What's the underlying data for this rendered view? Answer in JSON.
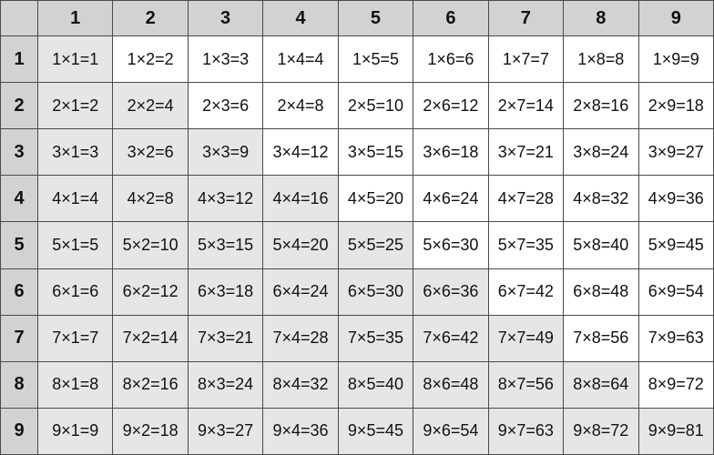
{
  "table": {
    "corner": "",
    "column_headers": [
      "1",
      "2",
      "3",
      "4",
      "5",
      "6",
      "7",
      "8",
      "9"
    ],
    "row_headers": [
      "1",
      "2",
      "3",
      "4",
      "5",
      "6",
      "7",
      "8",
      "9"
    ],
    "rows": [
      [
        "1×1=1",
        "1×2=2",
        "1×3=3",
        "1×4=4",
        "1×5=5",
        "1×6=6",
        "1×7=7",
        "1×8=8",
        "1×9=9"
      ],
      [
        "2×1=2",
        "2×2=4",
        "2×3=6",
        "2×4=8",
        "2×5=10",
        "2×6=12",
        "2×7=14",
        "2×8=16",
        "2×9=18"
      ],
      [
        "3×1=3",
        "3×2=6",
        "3×3=9",
        "3×4=12",
        "3×5=15",
        "3×6=18",
        "3×7=21",
        "3×8=24",
        "3×9=27"
      ],
      [
        "4×1=4",
        "4×2=8",
        "4×3=12",
        "4×4=16",
        "4×5=20",
        "4×6=24",
        "4×7=28",
        "4×8=32",
        "4×9=36"
      ],
      [
        "5×1=5",
        "5×2=10",
        "5×3=15",
        "5×4=20",
        "5×5=25",
        "5×6=30",
        "5×7=35",
        "5×8=40",
        "5×9=45"
      ],
      [
        "6×1=6",
        "6×2=12",
        "6×3=18",
        "6×4=24",
        "6×5=30",
        "6×6=36",
        "6×7=42",
        "6×8=48",
        "6×9=54"
      ],
      [
        "7×1=7",
        "7×2=14",
        "7×3=21",
        "7×4=28",
        "7×5=35",
        "7×6=42",
        "7×7=49",
        "7×8=56",
        "7×9=63"
      ],
      [
        "8×1=8",
        "8×2=16",
        "8×3=24",
        "8×4=32",
        "8×5=40",
        "8×6=48",
        "8×7=56",
        "8×8=64",
        "8×9=72"
      ],
      [
        "9×1=9",
        "9×2=18",
        "9×3=27",
        "9×4=36",
        "9×5=45",
        "9×6=54",
        "9×7=63",
        "9×8=72",
        "9×9=81"
      ]
    ],
    "colors": {
      "header": "#d2d2d2",
      "shaded": "#e6e6e6",
      "plain": "#ffffff",
      "border": "#4a4a4a"
    }
  }
}
